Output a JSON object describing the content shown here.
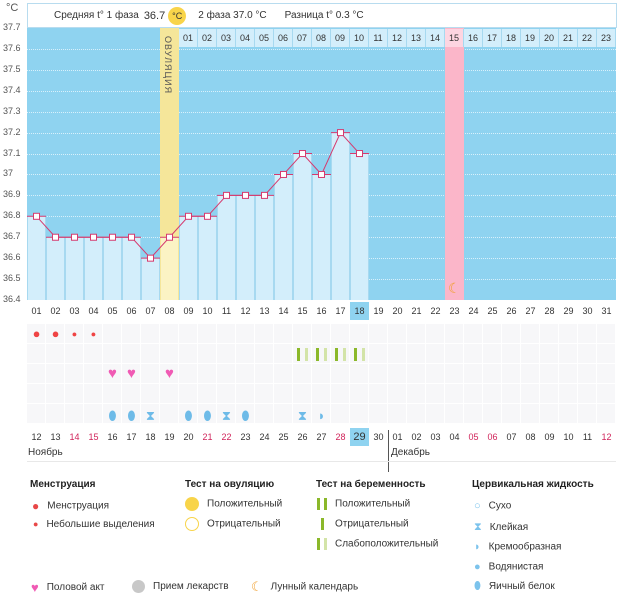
{
  "header": {
    "unit": "°C",
    "phase1_label": "Средняя t° 1 фаза",
    "phase1_value": "36.7",
    "phase1_unit": "°C",
    "phase2": "2 фаза 37.0 °C",
    "difference": "Разница t° 0.3 °C"
  },
  "chart_data": {
    "type": "bar+line",
    "ylabel": "°C",
    "ylim": [
      36.4,
      37.7
    ],
    "yticks": [
      "37.7",
      "37.6",
      "37.5",
      "37.4",
      "37.3",
      "37.2",
      "37.1",
      "37",
      "36.9",
      "36.8",
      "36.7",
      "36.6",
      "36.5",
      "36.4"
    ],
    "cycle_days": [
      "01",
      "02",
      "03",
      "04",
      "05",
      "06",
      "07",
      "08",
      "09",
      "10",
      "11",
      "12",
      "13",
      "14",
      "15",
      "16",
      "17",
      "18",
      "19",
      "20",
      "21",
      "22",
      "23",
      "24",
      "25",
      "26",
      "27",
      "28",
      "29",
      "30",
      "31"
    ],
    "temperatures": [
      36.8,
      36.7,
      36.7,
      36.7,
      36.7,
      36.7,
      36.6,
      36.7,
      36.8,
      36.8,
      36.9,
      36.9,
      36.9,
      37.0,
      37.1,
      37.0,
      37.2,
      37.1
    ],
    "current_day": 18,
    "ovulation_day": 8,
    "ovulation_label": "ОВУЛЯЦИЯ",
    "post_ovulation_days": [
      "01",
      "02",
      "03",
      "04",
      "05",
      "06",
      "07",
      "08",
      "09",
      "10",
      "11",
      "12",
      "13",
      "14",
      "15",
      "16",
      "17",
      "18",
      "19",
      "20",
      "21",
      "22",
      "23"
    ],
    "highlight_post_ovulation_day": 15,
    "moon_day": 23,
    "colors": {
      "background": "#8fd3f0",
      "bar": "#d3eefb",
      "line": "#d63a6e",
      "ovulation": "#f5e69a",
      "highlight": "#fbb6c9"
    }
  },
  "markers": {
    "menstruation": [
      {
        "day": 1,
        "type": "heavy"
      },
      {
        "day": 2,
        "type": "heavy"
      },
      {
        "day": 3,
        "type": "light"
      },
      {
        "day": 4,
        "type": "light"
      }
    ],
    "pregnancy_tests": [
      {
        "day": 15,
        "type": "weak"
      },
      {
        "day": 16,
        "type": "weak"
      },
      {
        "day": 17,
        "type": "weak"
      },
      {
        "day": 18,
        "type": "weak"
      }
    ],
    "intercourse": [
      5,
      6,
      8
    ],
    "cervical": [
      {
        "day": 5,
        "type": "egg-white"
      },
      {
        "day": 6,
        "type": "egg-white"
      },
      {
        "day": 7,
        "type": "sticky"
      },
      {
        "day": 9,
        "type": "egg-white"
      },
      {
        "day": 10,
        "type": "egg-white"
      },
      {
        "day": 11,
        "type": "sticky"
      },
      {
        "day": 12,
        "type": "egg-white"
      },
      {
        "day": 15,
        "type": "sticky"
      },
      {
        "day": 16,
        "type": "creamy"
      }
    ]
  },
  "calendar": {
    "dates": [
      "12",
      "13",
      "14",
      "15",
      "16",
      "17",
      "18",
      "19",
      "20",
      "21",
      "22",
      "23",
      "24",
      "25",
      "26",
      "27",
      "28",
      "29",
      "30",
      "01",
      "02",
      "03",
      "04",
      "05",
      "06",
      "07",
      "08",
      "09",
      "10",
      "11",
      "12"
    ],
    "weekend_indices": [
      2,
      3,
      9,
      10,
      16,
      23,
      24,
      30
    ],
    "today_index": 17,
    "months": [
      "Ноябрь",
      "Декабрь"
    ]
  },
  "legend": {
    "menstruation": {
      "title": "Менструация",
      "items": [
        "Менструация",
        "Небольшие выделения"
      ]
    },
    "ovulation_test": {
      "title": "Тест на овуляцию",
      "items": [
        "Положительный",
        "Отрицательный"
      ]
    },
    "pregnancy_test": {
      "title": "Тест на беременность",
      "items": [
        "Положительный",
        "Отрицательный",
        "Слабоположительный"
      ]
    },
    "cervical": {
      "title": "Цервикальная жидкость",
      "items": [
        "Сухо",
        "Клейкая",
        "Кремообразная",
        "Водянистая",
        "Яичный белок"
      ]
    },
    "other": [
      "Половой акт",
      "Прием лекарств",
      "Лунный календарь"
    ]
  }
}
